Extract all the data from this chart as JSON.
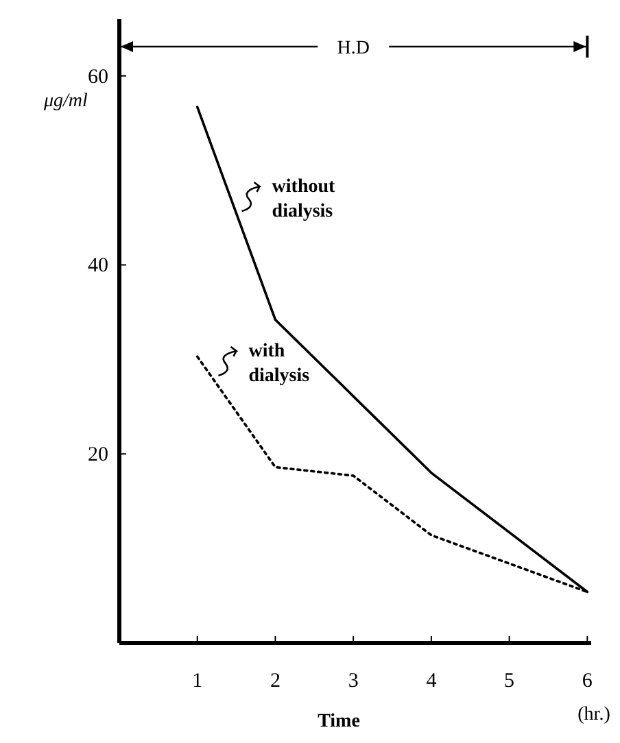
{
  "chart_data": {
    "type": "line",
    "ylabel": "μg/ml",
    "xlabel": "Time",
    "xlim": [
      0,
      6.05
    ],
    "ylim": [
      0,
      66
    ],
    "xticks": [
      1,
      2,
      3,
      4,
      5,
      6
    ],
    "yticks": [
      20,
      40,
      60
    ],
    "grid": false,
    "marker": "none",
    "series": [
      {
        "color": "#000000",
        "line_style": "solid",
        "x": [
          1,
          2,
          4,
          6
        ],
        "values": [
          56.7,
          34.2,
          18,
          5.4
        ]
      },
      {
        "color": "#000000",
        "line_style": "dotted",
        "x": [
          1,
          2,
          3,
          4,
          6
        ],
        "values": [
          30.3,
          18.6,
          17.7,
          11.4,
          5.4
        ]
      }
    ],
    "annotations": [
      "H.D",
      "(hr.)",
      {
        "text": "without dialysis",
        "x": 1.5,
        "y": 45.4
      },
      {
        "text": "with dialysis",
        "x": 1.2,
        "y": 28
      }
    ]
  }
}
